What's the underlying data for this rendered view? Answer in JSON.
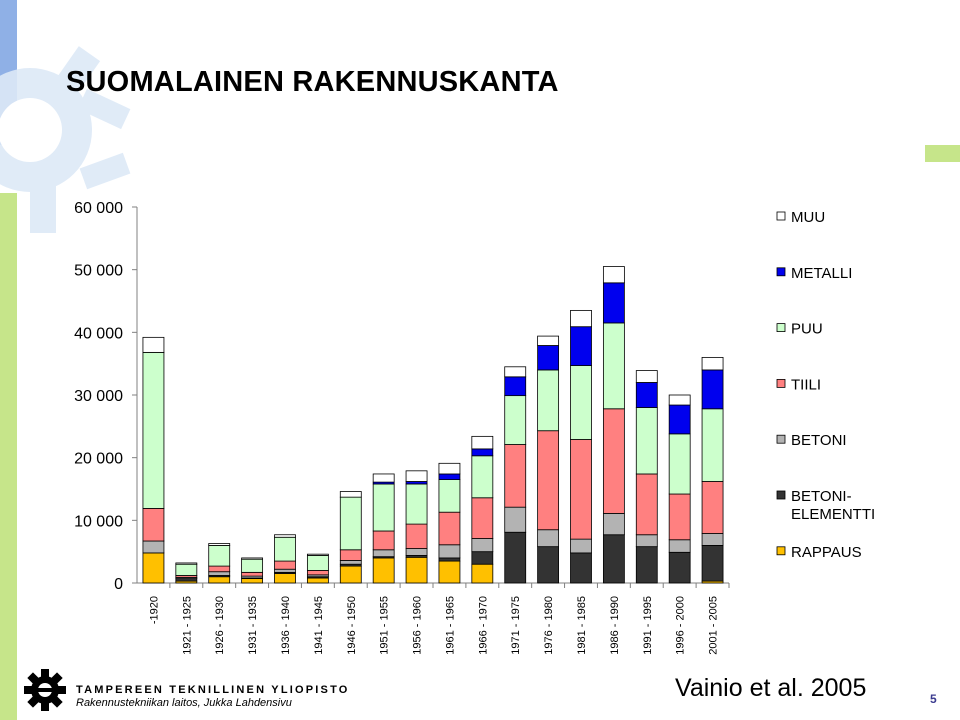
{
  "slide": {
    "title": "SUOMALAINEN RAKENNUSKANTA",
    "citation": "Vainio et al. 2005",
    "page_number": "5",
    "footer_university": "TAMPEREEN TEKNILLINEN YLIOPISTO",
    "footer_department": "Rakennustekniikan laitos, Jukka Lahdensivu",
    "accent_colors": {
      "left_bar_top": "#8fb0e6",
      "left_bar_bottom": "#c6e58a"
    }
  },
  "chart_data": {
    "type": "bar",
    "stacked": true,
    "title": "",
    "xlabel": "",
    "ylabel": "",
    "ylim": [
      0,
      60000
    ],
    "y_ticks": [
      "0",
      "10 000",
      "20 000",
      "30 000",
      "40 000",
      "50 000",
      "60 000"
    ],
    "grid": false,
    "legend_position": "right",
    "categories": [
      "-1920",
      "1921 - 1925",
      "1926 - 1930",
      "1931 - 1935",
      "1936 - 1940",
      "1941 - 1945",
      "1946 - 1950",
      "1951 - 1955",
      "1956 - 1960",
      "1961 - 1965",
      "1966 - 1970",
      "1971 - 1975",
      "1976 - 1980",
      "1981 - 1985",
      "1986 - 1990",
      "1991 - 1995",
      "1996 - 2000",
      "2001 - 2005"
    ],
    "series": [
      {
        "name": "RAPPAUS",
        "color": "#ffc000",
        "values": [
          4800,
          300,
          1000,
          700,
          1500,
          800,
          2700,
          4000,
          4100,
          3500,
          3000,
          0,
          0,
          0,
          0,
          0,
          0,
          300
        ]
      },
      {
        "name": "BETONI-\nELEMENTTI",
        "color": "#333333",
        "values": [
          0,
          400,
          200,
          100,
          200,
          200,
          300,
          200,
          300,
          500,
          2000,
          8100,
          5800,
          4800,
          7700,
          5800,
          4900,
          5700
        ]
      },
      {
        "name": "BETONI",
        "color": "#b3b3b3",
        "values": [
          1900,
          200,
          600,
          300,
          500,
          300,
          600,
          1100,
          1100,
          2100,
          2100,
          4000,
          2700,
          2200,
          3400,
          1900,
          2000,
          1900
        ]
      },
      {
        "name": "TIILI",
        "color": "#ff8080",
        "values": [
          5200,
          300,
          900,
          600,
          1300,
          700,
          1700,
          3000,
          3900,
          5200,
          6500,
          10000,
          15800,
          15900,
          16700,
          9700,
          7300,
          8300
        ]
      },
      {
        "name": "PUU",
        "color": "#ccffcc",
        "values": [
          24900,
          1800,
          3300,
          2100,
          3800,
          2400,
          8400,
          7500,
          6400,
          5200,
          6700,
          7800,
          9700,
          11800,
          13700,
          10600,
          9600,
          11600
        ]
      },
      {
        "name": "METALLI",
        "color": "#0000ee",
        "values": [
          0,
          0,
          0,
          0,
          0,
          0,
          0,
          300,
          400,
          900,
          1100,
          3000,
          3900,
          6200,
          6400,
          4000,
          4600,
          6200
        ]
      },
      {
        "name": "MUU",
        "color": "#ffffff",
        "values": [
          2400,
          200,
          300,
          200,
          400,
          200,
          900,
          1300,
          1700,
          1700,
          2000,
          1600,
          1500,
          2600,
          2600,
          1900,
          1600,
          2000
        ]
      }
    ]
  }
}
